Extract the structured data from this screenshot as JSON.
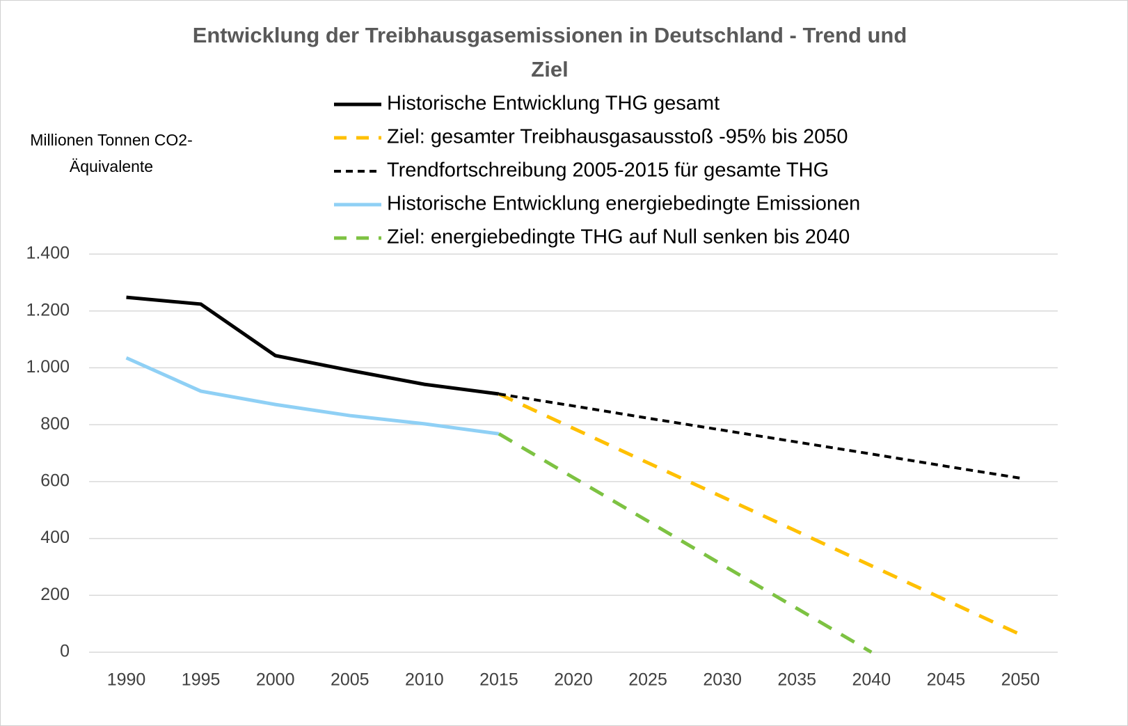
{
  "chart_data": {
    "type": "line",
    "title": [
      "Entwicklung der Treibhausgasemissionen in Deutschland - Trend und",
      "Ziel"
    ],
    "y_label": [
      "Millionen Tonnen CO2-",
      "Äquivalente"
    ],
    "categories": [
      "1990",
      "1995",
      "2000",
      "2005",
      "2010",
      "2015",
      "2020",
      "2025",
      "2030",
      "2035",
      "2040",
      "2045",
      "2050"
    ],
    "series": [
      {
        "name": "Historische Entwicklung THG gesamt",
        "color": "#000000",
        "dash": "solid",
        "values": [
          1248,
          1224,
          1043,
          991,
          942,
          908,
          null,
          null,
          null,
          null,
          null,
          null,
          null
        ]
      },
      {
        "name": "Ziel: gesamter Treibhausgasausstoß -95% bis 2050",
        "color": "#ffc000",
        "dash": "dashed",
        "values": [
          null,
          null,
          null,
          null,
          null,
          908,
          787,
          666,
          546,
          425,
          304,
          183,
          62
        ]
      },
      {
        "name": "Trendfortschreibung 2005-2015 für gesamte THG",
        "color": "#000000",
        "dash": "dotted",
        "values": [
          null,
          null,
          null,
          null,
          null,
          908,
          866,
          823,
          781,
          739,
          697,
          654,
          612
        ]
      },
      {
        "name": "Historische Entwicklung energiebedingte Emissionen",
        "color": "#8fd0f5",
        "dash": "solid",
        "values": [
          1035,
          918,
          871,
          832,
          803,
          768,
          null,
          null,
          null,
          null,
          null,
          null,
          null
        ]
      },
      {
        "name": "Ziel: energiebedingte THG auf Null senken bis 2040",
        "color": "#7dc242",
        "dash": "dashed",
        "values": [
          null,
          null,
          null,
          null,
          null,
          768,
          614,
          461,
          307,
          154,
          0,
          null,
          null
        ]
      }
    ],
    "ylim": [
      0,
      1400
    ],
    "yticks": [
      0,
      200,
      400,
      600,
      800,
      {
        "value": 1000,
        "label": "1.000"
      },
      {
        "value": 1200,
        "label": "1.200"
      },
      {
        "value": 1400,
        "label": "1.400"
      }
    ],
    "grid": true,
    "legend": "top"
  }
}
